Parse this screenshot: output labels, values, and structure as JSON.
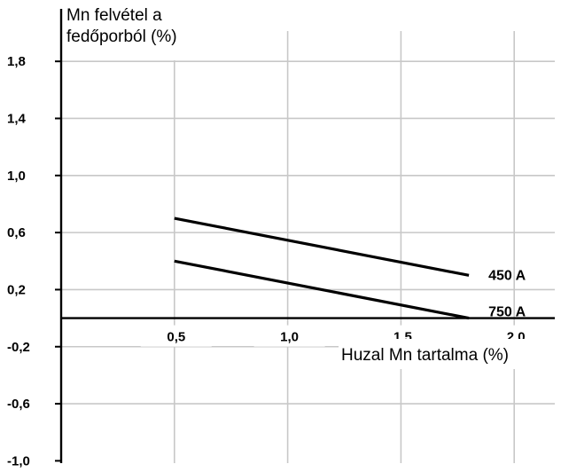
{
  "chart_data": {
    "type": "line",
    "ylabel": "Mn felvétel a\nfedőporból (%)",
    "xlabel": "Huzal Mn tartalma (%)",
    "xlim": [
      0,
      2.2
    ],
    "ylim": [
      -1.0,
      2.0
    ],
    "x_ticks": [
      0.5,
      1.0,
      1.5,
      2.0
    ],
    "x_tick_labels": [
      "0,5",
      "1,0",
      "1,5",
      "2,0"
    ],
    "y_ticks": [
      1.8,
      1.4,
      1.0,
      0.6,
      0.2,
      -0.2,
      -0.6,
      -1.0
    ],
    "y_tick_labels": [
      "1,8",
      "1,4",
      "1,0",
      "0,6",
      "0,2",
      "-0,2",
      "-0,6",
      "-1,0"
    ],
    "grid": true,
    "series": [
      {
        "name": "450 A",
        "x": [
          0.5,
          1.8
        ],
        "y": [
          0.7,
          0.3
        ]
      },
      {
        "name": "750 A",
        "x": [
          0.5,
          1.8
        ],
        "y": [
          0.4,
          0.0
        ]
      }
    ]
  }
}
